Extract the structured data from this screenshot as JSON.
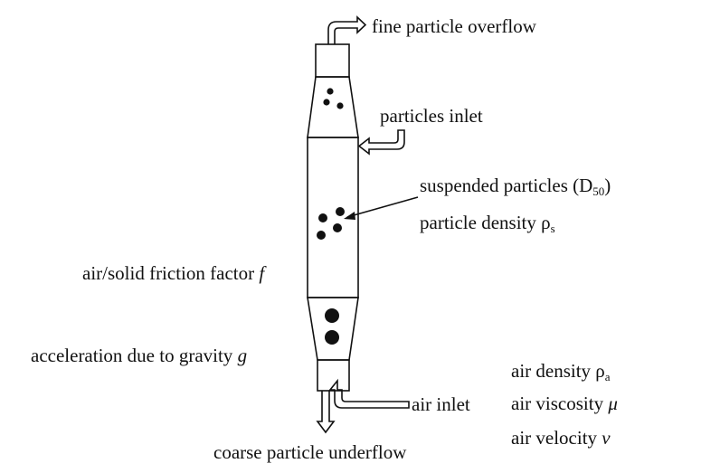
{
  "labels": {
    "fine_overflow": "fine particle overflow",
    "particles_inlet": "particles inlet",
    "suspended_particles": "suspended particles (D",
    "suspended_particles_sub": "50",
    "suspended_particles_close": ")",
    "particle_density": "particle density ρ",
    "particle_density_sub": "s",
    "friction_factor": "air/solid friction factor",
    "friction_factor_symbol": "f",
    "gravity": "acceleration due to gravity",
    "gravity_symbol": "g",
    "air_inlet": "air inlet",
    "air_density": "air density ρ",
    "air_density_sub": "a",
    "air_viscosity": "air viscosity",
    "air_viscosity_symbol": "μ",
    "air_velocity": "air velocity",
    "air_velocity_symbol": "v",
    "coarse_underflow": "coarse particle underflow"
  },
  "colors": {
    "line": "#111111",
    "background": "#ffffff"
  }
}
